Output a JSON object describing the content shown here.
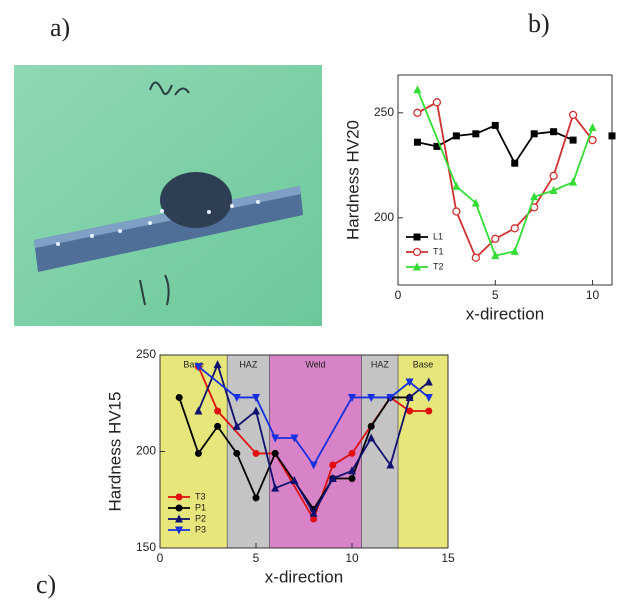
{
  "panel_labels": [
    "a)",
    "b)",
    "c)"
  ],
  "chart_data": [
    {
      "type": "line",
      "xlabel": "x-direction",
      "ylabel": "Hardness HV20",
      "xlim": [
        0,
        11
      ],
      "ylim": [
        168,
        268
      ],
      "xticks": [
        0,
        5,
        10
      ],
      "yticks": [
        200,
        250
      ],
      "legend": "lower left",
      "series": [
        {
          "name": "L1",
          "color": "#000000",
          "marker": "square",
          "x": [
            1,
            2,
            3,
            4,
            5,
            6,
            7,
            8,
            9,
            10,
            11
          ],
          "values": [
            236,
            234,
            239,
            240,
            244,
            226,
            240,
            241,
            237,
            null,
            239
          ]
        },
        {
          "name": "T1",
          "color": "#d03030",
          "marker": "circle-open",
          "x": [
            1,
            2,
            3,
            4,
            5,
            6,
            7,
            8,
            9,
            10
          ],
          "values": [
            250,
            255,
            203,
            181,
            190,
            195,
            205,
            220,
            249,
            237
          ]
        },
        {
          "name": "T2",
          "color": "#33dd33",
          "marker": "triangle",
          "x": [
            1,
            3,
            4,
            5,
            6,
            7,
            8,
            9,
            10
          ],
          "values": [
            261,
            215,
            207,
            182,
            184,
            210,
            213,
            217,
            243
          ]
        }
      ]
    },
    {
      "type": "line",
      "xlabel": "x-direction",
      "ylabel": "Hardness HV15",
      "xlim": [
        0,
        15
      ],
      "ylim": [
        150,
        250
      ],
      "xticks": [
        0,
        5,
        10,
        15
      ],
      "yticks": [
        150,
        200,
        250
      ],
      "legend": "lower left",
      "regions": [
        {
          "label": "Base",
          "start": 0,
          "end": 3.5,
          "color": "#e6e67a"
        },
        {
          "label": "HAZ",
          "start": 3.5,
          "end": 5.7,
          "color": "#c4c4c4"
        },
        {
          "label": "Weld",
          "start": 5.7,
          "end": 10.5,
          "color": "#d883c8"
        },
        {
          "label": "HAZ",
          "start": 10.5,
          "end": 12.4,
          "color": "#c4c4c4"
        },
        {
          "label": "Base",
          "start": 12.4,
          "end": 15,
          "color": "#e6e67a"
        }
      ],
      "series": [
        {
          "name": "T3",
          "color": "#e01010",
          "marker": "circle",
          "x": [
            2,
            3,
            5,
            6,
            8,
            9,
            10,
            12,
            13,
            14
          ],
          "values": [
            244,
            221,
            199,
            199,
            165,
            193,
            199,
            228,
            221,
            221
          ]
        },
        {
          "name": "P1",
          "color": "#000000",
          "marker": "circle",
          "x": [
            1,
            2,
            3,
            4,
            5,
            6,
            8,
            9,
            10,
            11,
            12,
            13
          ],
          "values": [
            228,
            199,
            213,
            199,
            176,
            199,
            170,
            186,
            186,
            213,
            228,
            228
          ]
        },
        {
          "name": "P2",
          "color": "#101070",
          "marker": "triangle",
          "x": [
            2,
            3,
            4,
            5,
            6,
            7,
            8,
            9,
            10,
            11,
            12,
            13,
            14
          ],
          "values": [
            221,
            245,
            213,
            221,
            181,
            185,
            168,
            186,
            190,
            207,
            193,
            228,
            236
          ]
        },
        {
          "name": "P3",
          "color": "#1530e0",
          "marker": "triangle-down",
          "x": [
            2,
            4,
            5,
            6,
            7,
            8,
            10,
            11,
            12,
            13,
            14
          ],
          "values": [
            244,
            228,
            228,
            207,
            207,
            193,
            228,
            228,
            228,
            236,
            228
          ]
        }
      ]
    }
  ]
}
